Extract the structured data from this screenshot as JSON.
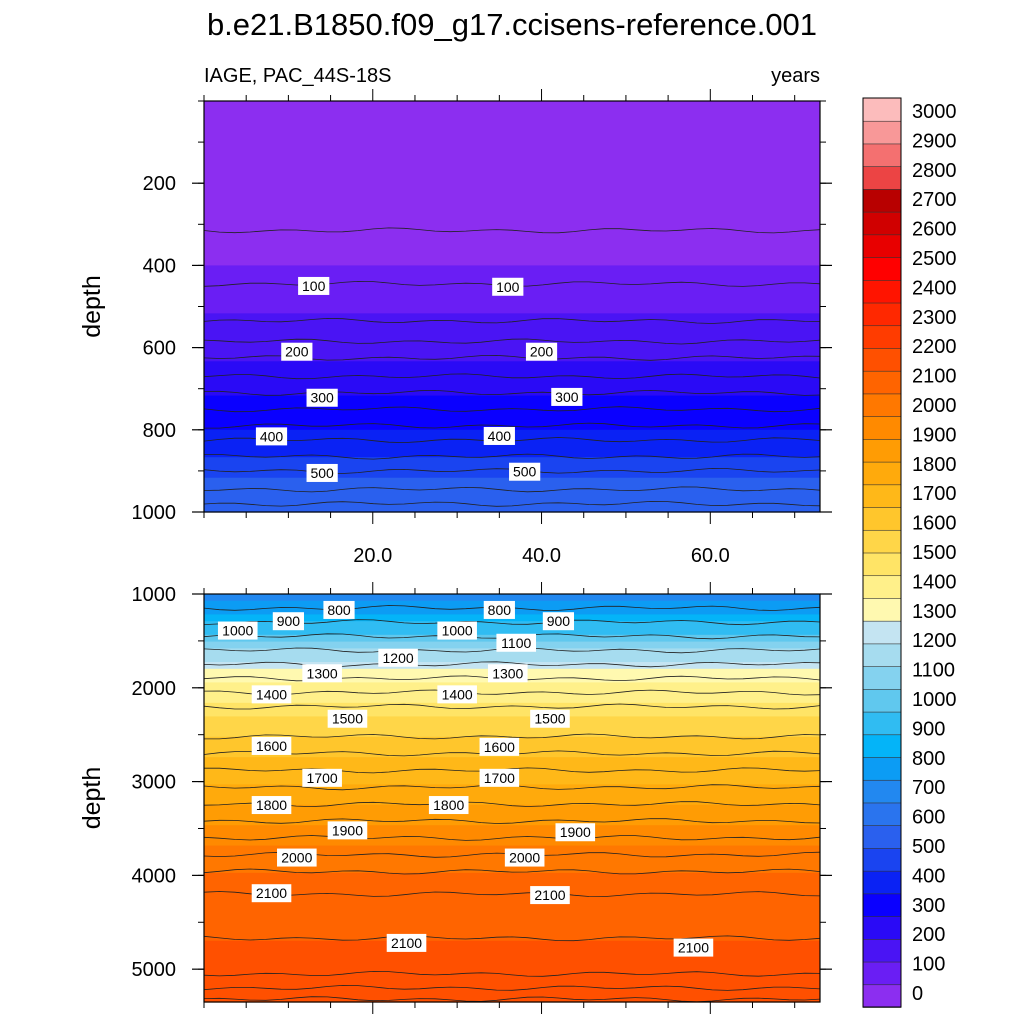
{
  "chart_data": {
    "type": "contour",
    "title": "b.e21.B1850.f09_g17.ccisens-reference.001",
    "left_string": "IAGE, PAC_44S-18S",
    "right_string": "years",
    "panels": [
      {
        "name": "upper",
        "ylabel": "depth",
        "ylim": [
          0,
          1000
        ],
        "y_reversed": true,
        "yticks": [
          200,
          400,
          600,
          800,
          1000
        ],
        "ytick_labels": [
          "200",
          "400",
          "600",
          "800",
          "1000"
        ],
        "xlim": [
          0,
          73
        ],
        "xticks": [
          20,
          40,
          60
        ],
        "xtick_labels": [
          "20.0",
          "40.0",
          "60.0"
        ],
        "contour_depths": [
          315,
          445,
          535,
          585,
          625,
          670,
          710,
          750,
          790,
          825,
          865,
          900,
          945,
          980
        ],
        "labels": [
          {
            "text": "100",
            "x": 13,
            "y": 450
          },
          {
            "text": "100",
            "x": 36,
            "y": 452
          },
          {
            "text": "200",
            "x": 11,
            "y": 610
          },
          {
            "text": "200",
            "x": 40,
            "y": 610
          },
          {
            "text": "300",
            "x": 14,
            "y": 722
          },
          {
            "text": "300",
            "x": 43,
            "y": 720
          },
          {
            "text": "400",
            "x": 8,
            "y": 816
          },
          {
            "text": "400",
            "x": 35,
            "y": 815
          },
          {
            "text": "500",
            "x": 14,
            "y": 905
          },
          {
            "text": "500",
            "x": 38,
            "y": 902
          }
        ]
      },
      {
        "name": "lower",
        "ylabel": "depth",
        "ylim": [
          1000,
          5350
        ],
        "y_reversed": true,
        "yticks": [
          1000,
          2000,
          3000,
          4000,
          5000
        ],
        "ytick_labels": [
          "1000",
          "2000",
          "3000",
          "4000",
          "5000"
        ],
        "xlim": [
          0,
          73
        ],
        "contour_depths": [
          1150,
          1300,
          1450,
          1600,
          1750,
          1900,
          2050,
          2200,
          2520,
          2700,
          2880,
          3060,
          3240,
          3420,
          3600,
          3780,
          3960,
          4200,
          4670,
          5050,
          5200,
          5320
        ],
        "labels": [
          {
            "text": "800",
            "x": 16,
            "y": 1170
          },
          {
            "text": "800",
            "x": 35,
            "y": 1170
          },
          {
            "text": "900",
            "x": 10,
            "y": 1290
          },
          {
            "text": "900",
            "x": 42,
            "y": 1290
          },
          {
            "text": "1000",
            "x": 4,
            "y": 1390
          },
          {
            "text": "1000",
            "x": 30,
            "y": 1390
          },
          {
            "text": "1100",
            "x": 37,
            "y": 1520
          },
          {
            "text": "1200",
            "x": 23,
            "y": 1680
          },
          {
            "text": "1300",
            "x": 14,
            "y": 1845
          },
          {
            "text": "1300",
            "x": 36,
            "y": 1845
          },
          {
            "text": "1400",
            "x": 8,
            "y": 2070
          },
          {
            "text": "1400",
            "x": 30,
            "y": 2070
          },
          {
            "text": "1500",
            "x": 17,
            "y": 2330
          },
          {
            "text": "1500",
            "x": 41,
            "y": 2330
          },
          {
            "text": "1600",
            "x": 8,
            "y": 2620
          },
          {
            "text": "1600",
            "x": 35,
            "y": 2630
          },
          {
            "text": "1700",
            "x": 14,
            "y": 2960
          },
          {
            "text": "1700",
            "x": 35,
            "y": 2960
          },
          {
            "text": "1800",
            "x": 8,
            "y": 3250
          },
          {
            "text": "1800",
            "x": 29,
            "y": 3250
          },
          {
            "text": "1900",
            "x": 17,
            "y": 3520
          },
          {
            "text": "1900",
            "x": 44,
            "y": 3540
          },
          {
            "text": "2000",
            "x": 11,
            "y": 3810
          },
          {
            "text": "2000",
            "x": 38,
            "y": 3810
          },
          {
            "text": "2100",
            "x": 8,
            "y": 4190
          },
          {
            "text": "2100",
            "x": 41,
            "y": 4210
          },
          {
            "text": "2100",
            "x": 24,
            "y": 4720
          },
          {
            "text": "2100",
            "x": 58,
            "y": 4770
          }
        ]
      }
    ],
    "colorbar": {
      "levels": [
        0,
        100,
        200,
        300,
        400,
        500,
        600,
        700,
        800,
        900,
        1000,
        1100,
        1200,
        1300,
        1400,
        1500,
        1600,
        1700,
        1800,
        1900,
        2000,
        2100,
        2200,
        2300,
        2400,
        2500,
        2600,
        2700,
        2800,
        2900,
        3000
      ],
      "labels": [
        "0",
        "100",
        "200",
        "300",
        "400",
        "500",
        "600",
        "700",
        "800",
        "900",
        "1000",
        "1100",
        "1200",
        "1300",
        "1400",
        "1500",
        "1600",
        "1700",
        "1800",
        "1900",
        "2000",
        "2100",
        "2200",
        "2300",
        "2400",
        "2500",
        "2600",
        "2700",
        "2800",
        "2900",
        "3000"
      ],
      "colors": [
        "#8c2ef0",
        "#6a1ef4",
        "#4a14f4",
        "#2a0af6",
        "#0a00ff",
        "#0a22f4",
        "#1a44f0",
        "#2a60ee",
        "#2a74ee",
        "#2288f0",
        "#0c9cf4",
        "#04b4f8",
        "#30bcf2",
        "#60c8ee",
        "#84d2ef",
        "#a6dcef",
        "#c4e4f2",
        "#fff9b0",
        "#fff08a",
        "#ffe466",
        "#ffd648",
        "#ffc62c",
        "#ffb818",
        "#ffaa0c",
        "#ff9c04",
        "#ff8a00",
        "#ff7800",
        "#ff6400",
        "#ff5000",
        "#ff3c00",
        "#ff2800",
        "#ff1400",
        "#ff0000",
        "#e80000",
        "#d00000",
        "#b80000",
        "#ec4444",
        "#f47070",
        "#f89898",
        "#fcbcbc"
      ]
    }
  }
}
